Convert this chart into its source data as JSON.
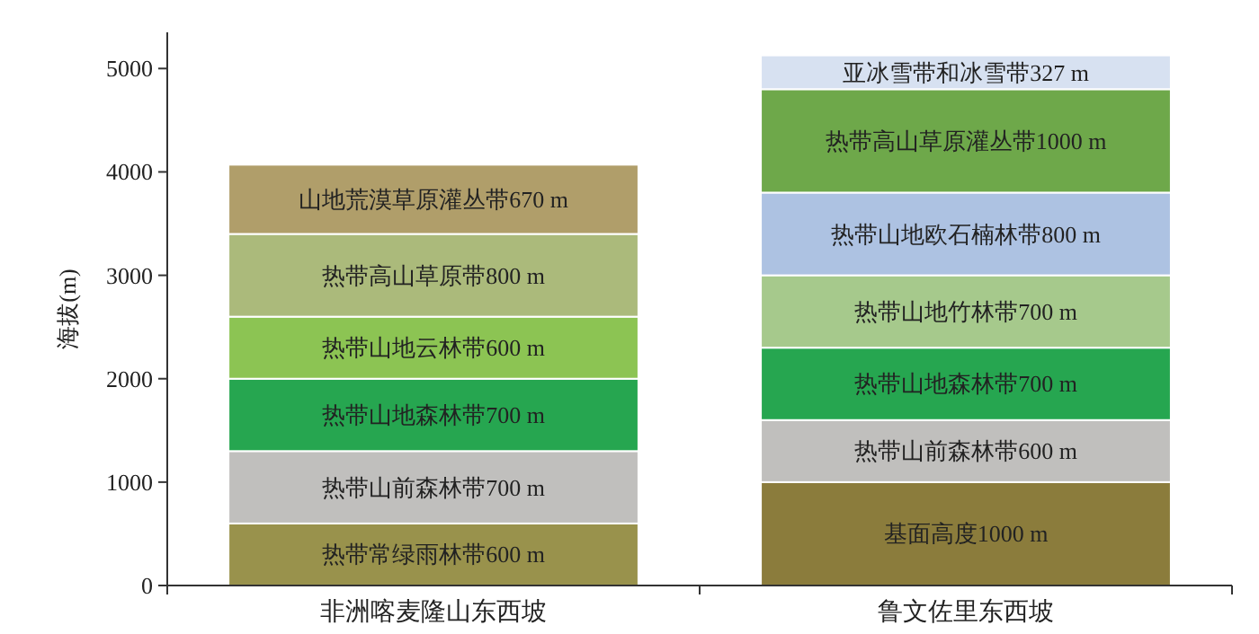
{
  "chart_data": {
    "type": "bar",
    "stacked": true,
    "ylabel": "海拔(m)",
    "categories": [
      "非洲喀麦隆山东西坡",
      "鲁文佐里东西坡"
    ],
    "ylim": [
      0,
      5350
    ],
    "yticks": [
      0,
      1000,
      2000,
      3000,
      4000,
      5000
    ],
    "series": [
      {
        "colors": [
          "#99924c",
          "#8b7c3c"
        ],
        "values": [
          600,
          1000
        ],
        "value_labels": [
          "热带常绿雨林带600 m",
          "基面高度1000 m"
        ]
      },
      {
        "colors": [
          "#c0bfbd",
          "#c0bfbd"
        ],
        "values": [
          700,
          600
        ],
        "value_labels": [
          "热带山前森林带700 m",
          "热带山前森林带600 m"
        ]
      },
      {
        "colors": [
          "#26a650",
          "#26a650"
        ],
        "values": [
          700,
          700
        ],
        "value_labels": [
          "热带山地森林带700 m",
          "热带山地森林带700 m"
        ]
      },
      {
        "colors": [
          "#8cc453",
          "#a6c98c"
        ],
        "values": [
          600,
          700
        ],
        "value_labels": [
          "热带山地云林带600 m",
          "热带山地竹林带700 m"
        ]
      },
      {
        "colors": [
          "#abba7b",
          "#adc2e2"
        ],
        "values": [
          800,
          800
        ],
        "value_labels": [
          "热带高山草原带800 m",
          "热带山地欧石楠林带800 m"
        ]
      },
      {
        "colors": [
          "#b09e6a",
          "#6ea84a"
        ],
        "values": [
          670,
          1000
        ],
        "value_labels": [
          "山地荒漠草原灌丛带670 m",
          "热带高山草原灌丛带1000 m"
        ]
      },
      {
        "colors": [
          null,
          "#d7e1f1"
        ],
        "values": [
          null,
          327
        ],
        "value_labels": [
          null,
          "亚冰雪带和冰雪带327 m"
        ]
      }
    ]
  }
}
